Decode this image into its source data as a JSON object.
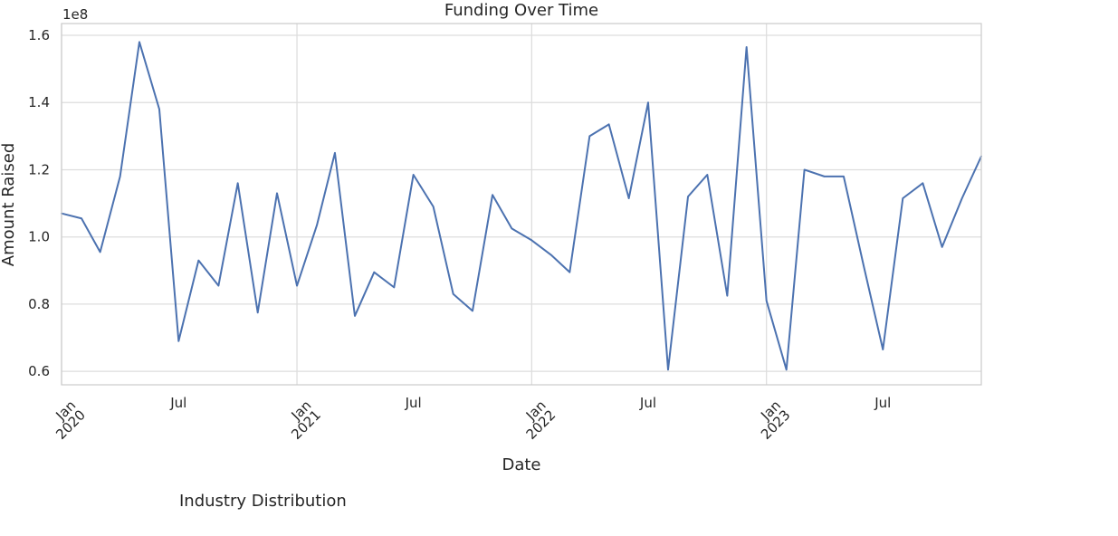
{
  "chart_data": {
    "type": "line",
    "title": "Funding Over Time",
    "xlabel": "Date",
    "ylabel": "Amount Raised",
    "y_scale_label": "1e8",
    "ylim": [
      0.56,
      1.635
    ],
    "xlim": [
      "2020-01-01",
      "2023-12-01"
    ],
    "grid": true,
    "y_ticks": [
      {
        "value": 0.6,
        "label": "0.6"
      },
      {
        "value": 0.8,
        "label": "0.8"
      },
      {
        "value": 1.0,
        "label": "1.0"
      },
      {
        "value": 1.2,
        "label": "1.2"
      },
      {
        "value": 1.4,
        "label": "1.4"
      },
      {
        "value": 1.6,
        "label": "1.6"
      }
    ],
    "x_ticks": [
      {
        "date": "2020-01-01",
        "label": "Jan\n2020",
        "major": true
      },
      {
        "date": "2020-07-01",
        "label": "Jul",
        "major": false
      },
      {
        "date": "2021-01-01",
        "label": "Jan\n2021",
        "major": true
      },
      {
        "date": "2021-07-01",
        "label": "Jul",
        "major": false
      },
      {
        "date": "2022-01-01",
        "label": "Jan\n2022",
        "major": true
      },
      {
        "date": "2022-07-01",
        "label": "Jul",
        "major": false
      },
      {
        "date": "2023-01-01",
        "label": "Jan\n2023",
        "major": true
      },
      {
        "date": "2023-07-01",
        "label": "Jul",
        "major": false
      }
    ],
    "series": [
      {
        "color": "#4c72b0",
        "x": [
          "2020-01-01",
          "2020-02-01",
          "2020-03-01",
          "2020-04-01",
          "2020-05-01",
          "2020-06-01",
          "2020-07-01",
          "2020-08-01",
          "2020-09-01",
          "2020-10-01",
          "2020-11-01",
          "2020-12-01",
          "2021-01-01",
          "2021-02-01",
          "2021-03-01",
          "2021-04-01",
          "2021-05-01",
          "2021-06-01",
          "2021-07-01",
          "2021-08-01",
          "2021-09-01",
          "2021-10-01",
          "2021-11-01",
          "2021-12-01",
          "2022-01-01",
          "2022-02-01",
          "2022-03-01",
          "2022-04-01",
          "2022-05-01",
          "2022-06-01",
          "2022-07-01",
          "2022-08-01",
          "2022-09-01",
          "2022-10-01",
          "2022-11-01",
          "2022-12-01",
          "2023-01-01",
          "2023-02-01",
          "2023-03-01",
          "2023-04-01",
          "2023-05-01",
          "2023-06-01",
          "2023-07-01",
          "2023-08-01",
          "2023-09-01",
          "2023-10-01",
          "2023-11-01",
          "2023-12-01"
        ],
        "y": [
          1.07,
          1.055,
          0.955,
          1.18,
          1.58,
          1.38,
          0.69,
          0.93,
          0.855,
          1.16,
          0.775,
          1.13,
          0.855,
          1.035,
          1.25,
          0.765,
          0.895,
          0.85,
          1.185,
          1.09,
          0.83,
          0.78,
          1.125,
          1.025,
          0.99,
          0.945,
          0.895,
          1.3,
          1.335,
          1.115,
          1.4,
          0.605,
          1.12,
          1.185,
          0.825,
          1.565,
          0.81,
          0.605,
          1.2,
          1.18,
          1.18,
          0.915,
          0.665,
          1.115,
          1.16,
          0.97,
          1.115,
          1.24
        ]
      }
    ]
  },
  "footer": {
    "text": "Industry Distribution"
  }
}
